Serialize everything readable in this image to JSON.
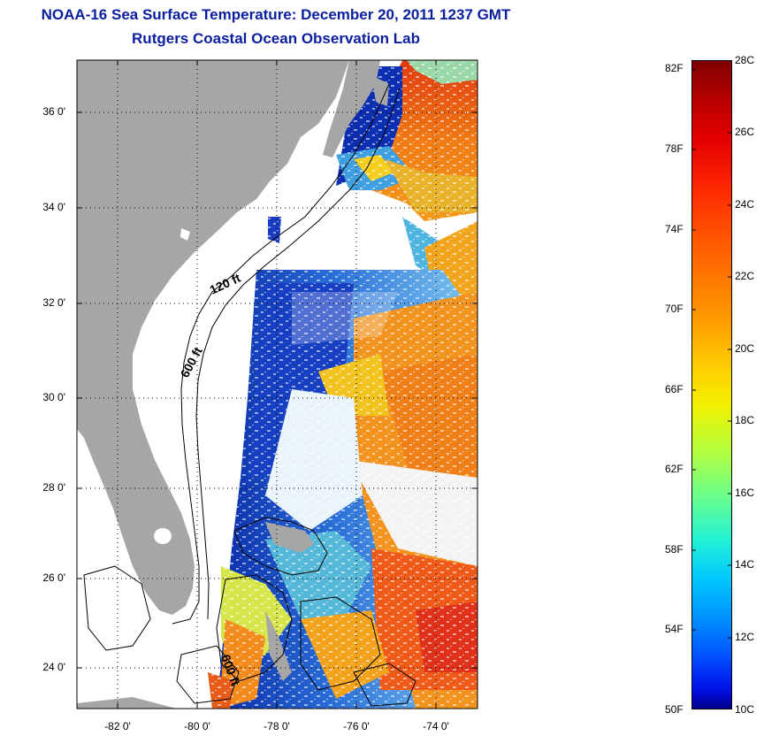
{
  "header": {
    "title": "NOAA-16 Sea Surface Temperature:  December 20, 2011 1237 GMT",
    "subtitle": "Rutgers Coastal Ocean Observation Lab"
  },
  "map": {
    "lat_labels": [
      "36 0'",
      "34 0'",
      "32 0'",
      "30 0'",
      "28 0'",
      "26 0'",
      "24 0'"
    ],
    "lon_labels": [
      "-82 0'",
      "-80 0'",
      "-78 0'",
      "-76 0'",
      "-74 0'"
    ],
    "contour_labels": [
      "120 ft",
      "600 ft",
      "600 ft"
    ],
    "land_color": "#a6a6a6",
    "gridlines": "dotted"
  },
  "colorbar": {
    "fahrenheit": [
      "82F",
      "78F",
      "74F",
      "70F",
      "66F",
      "62F",
      "58F",
      "54F",
      "50F"
    ],
    "celsius": [
      "28C",
      "26C",
      "24C",
      "22C",
      "20C",
      "18C",
      "16C",
      "14C",
      "12C",
      "10C"
    ],
    "colormap": "jet",
    "range_c": [
      10,
      28
    ]
  }
}
